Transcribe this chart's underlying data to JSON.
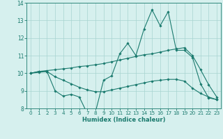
{
  "title": "",
  "xlabel": "Humidex (Indice chaleur)",
  "x": [
    0,
    1,
    2,
    3,
    4,
    5,
    6,
    7,
    8,
    9,
    10,
    11,
    12,
    13,
    14,
    15,
    16,
    17,
    18,
    19,
    20,
    21,
    22,
    23
  ],
  "line_main": [
    10.0,
    10.1,
    10.1,
    9.0,
    8.7,
    8.8,
    8.65,
    7.7,
    7.8,
    9.6,
    9.85,
    11.1,
    11.7,
    11.0,
    12.5,
    13.6,
    12.7,
    13.5,
    11.3,
    11.3,
    10.9,
    9.4,
    8.6,
    8.5
  ],
  "line_upper": [
    10.0,
    10.1,
    10.15,
    10.2,
    10.25,
    10.3,
    10.38,
    10.42,
    10.48,
    10.55,
    10.65,
    10.75,
    10.85,
    10.95,
    11.05,
    11.1,
    11.2,
    11.3,
    11.38,
    11.45,
    11.0,
    10.2,
    9.35,
    8.65
  ],
  "line_lower": [
    10.0,
    10.05,
    10.1,
    9.8,
    9.6,
    9.4,
    9.2,
    9.05,
    8.95,
    8.95,
    9.05,
    9.15,
    9.25,
    9.35,
    9.45,
    9.55,
    9.6,
    9.65,
    9.65,
    9.55,
    9.15,
    8.85,
    8.65,
    8.5
  ],
  "line_color": "#1a7a6e",
  "bg_color": "#d6f0ee",
  "grid_color": "#a8d4d0",
  "ylim": [
    8,
    14
  ],
  "yticks": [
    8,
    9,
    10,
    11,
    12,
    13,
    14
  ],
  "xticks": [
    0,
    1,
    2,
    3,
    4,
    5,
    6,
    7,
    8,
    9,
    10,
    11,
    12,
    13,
    14,
    15,
    16,
    17,
    18,
    19,
    20,
    21,
    22,
    23
  ]
}
